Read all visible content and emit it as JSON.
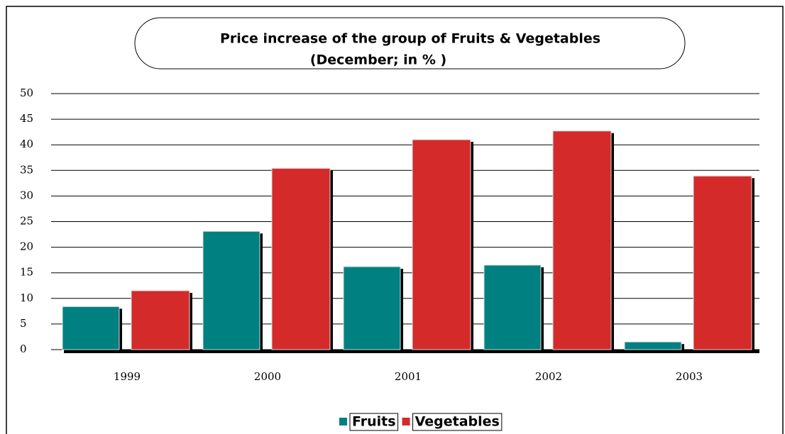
{
  "chart_data": {
    "type": "bar",
    "title": "Price increase of the group of Fruits & Vegetables",
    "subtitle": "(December; in % )",
    "categories": [
      "1999",
      "2000",
      "2001",
      "2002",
      "2003"
    ],
    "series": [
      {
        "name": "Fruits",
        "color": "#008080",
        "values": [
          8.4,
          23.1,
          16.2,
          16.5,
          1.5
        ]
      },
      {
        "name": "Vegetables",
        "color": "#d42a2a",
        "values": [
          11.5,
          35.4,
          41.0,
          42.7,
          33.9
        ]
      }
    ],
    "ylim": [
      0,
      50
    ],
    "yticks": [
      0,
      5,
      10,
      15,
      20,
      25,
      30,
      35,
      40,
      45,
      50
    ],
    "grid": true,
    "legend": "bottom"
  }
}
